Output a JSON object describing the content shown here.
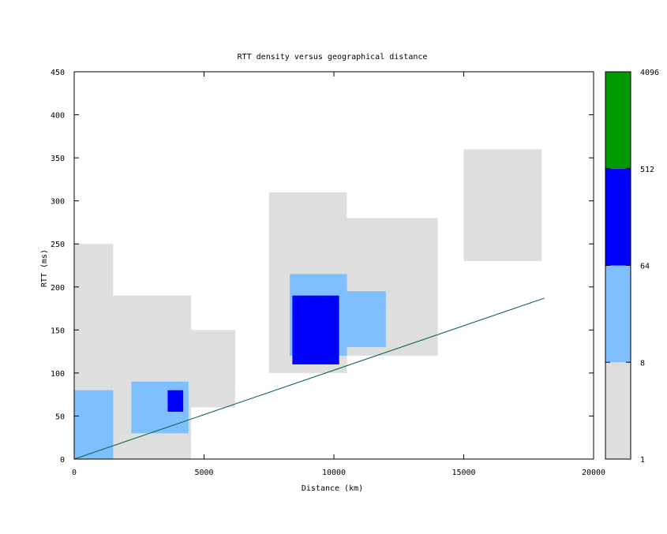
{
  "chart_data": {
    "type": "heatmap",
    "title": "RTT density versus geographical distance",
    "xlabel": "Distance (km)",
    "ylabel": "RTT (ms)",
    "xlim": [
      0,
      20000
    ],
    "ylim": [
      0,
      450
    ],
    "x_ticks": [
      0,
      5000,
      10000,
      15000,
      20000
    ],
    "y_ticks": [
      0,
      50,
      100,
      150,
      200,
      250,
      300,
      350,
      400,
      450
    ],
    "x_tick_labels": [
      "0",
      "5000",
      "10000",
      "15000",
      "20000"
    ],
    "y_tick_labels": [
      "0",
      "50",
      "100",
      "150",
      "200",
      "250",
      "300",
      "350",
      "400",
      "450"
    ],
    "grid": false,
    "legend": "colorbar-right",
    "colorbar": {
      "scale": "log",
      "bins": [
        {
          "from": "1",
          "to": "8",
          "color": "#dedede"
        },
        {
          "from": "8",
          "to": "64",
          "color": "#80bfff"
        },
        {
          "from": "64",
          "to": "512",
          "color": "#0000ff"
        },
        {
          "from": "512",
          "to": "4096",
          "color": "#009900"
        }
      ],
      "tick_labels": [
        "1",
        "8",
        "64",
        "512",
        "4096"
      ]
    },
    "density_regions": [
      {
        "level": 1,
        "x": [
          0,
          1500
        ],
        "y": [
          0,
          250
        ]
      },
      {
        "level": 1,
        "x": [
          1500,
          4500
        ],
        "y": [
          0,
          190
        ]
      },
      {
        "level": 1,
        "x": [
          4000,
          6200
        ],
        "y": [
          60,
          150
        ]
      },
      {
        "level": 1,
        "x": [
          7500,
          10500
        ],
        "y": [
          100,
          310
        ]
      },
      {
        "level": 1,
        "x": [
          10000,
          14000
        ],
        "y": [
          120,
          280
        ]
      },
      {
        "level": 1,
        "x": [
          15000,
          18000
        ],
        "y": [
          230,
          360
        ]
      },
      {
        "level": 2,
        "x": [
          0,
          1500
        ],
        "y": [
          0,
          80
        ]
      },
      {
        "level": 2,
        "x": [
          2200,
          4400
        ],
        "y": [
          30,
          90
        ]
      },
      {
        "level": 2,
        "x": [
          8300,
          10500
        ],
        "y": [
          120,
          215
        ]
      },
      {
        "level": 2,
        "x": [
          10400,
          12000
        ],
        "y": [
          130,
          195
        ]
      },
      {
        "level": 3,
        "x": [
          3600,
          4200
        ],
        "y": [
          55,
          80
        ]
      },
      {
        "level": 3,
        "x": [
          8400,
          10200
        ],
        "y": [
          110,
          190
        ]
      }
    ],
    "reference_line": {
      "color": "#006633",
      "points": [
        [
          0,
          0
        ],
        [
          18100,
          187
        ]
      ]
    }
  }
}
